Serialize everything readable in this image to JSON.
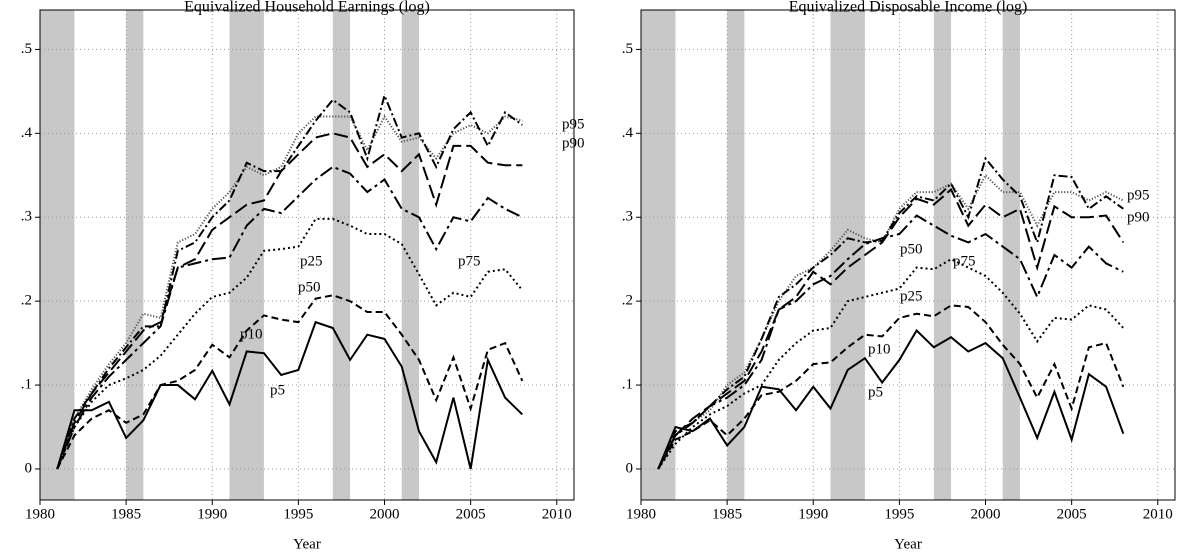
{
  "chart_data": [
    {
      "type": "line",
      "title": "Equivalized Household Earnings (log)",
      "xlabel": "Year",
      "x": [
        1981,
        1982,
        1983,
        1984,
        1985,
        1986,
        1987,
        1988,
        1989,
        1990,
        1991,
        1992,
        1993,
        1994,
        1995,
        1996,
        1997,
        1998,
        1999,
        2000,
        2001,
        2002,
        2003,
        2004,
        2005,
        2006,
        2007,
        2008
      ],
      "xlim": [
        1980,
        2011
      ],
      "ylim": [
        -0.037,
        0.547
      ],
      "xticks": [
        1980,
        1985,
        1990,
        1995,
        2000,
        2005,
        2010
      ],
      "yticks": [
        0,
        {
          "value": 0.1,
          "label": ".1"
        },
        {
          "value": 0.2,
          "label": ".2"
        },
        {
          "value": 0.3,
          "label": ".3"
        },
        {
          "value": 0.4,
          "label": ".4"
        },
        {
          "value": 0.5,
          "label": ".5"
        }
      ],
      "grid": true,
      "shaded_periods": [
        [
          1980,
          1982
        ],
        [
          1985,
          1986
        ],
        [
          1991,
          1993
        ],
        [
          1997,
          1998
        ],
        [
          2001,
          2002
        ]
      ],
      "series": [
        {
          "name": "p95",
          "color": "#555555",
          "dash": "1.2,1.8",
          "values": [
            0,
            0.06,
            0.095,
            0.125,
            0.15,
            0.185,
            0.18,
            0.27,
            0.28,
            0.31,
            0.33,
            0.36,
            0.35,
            0.36,
            0.4,
            0.42,
            0.42,
            0.42,
            0.38,
            0.42,
            0.39,
            0.395,
            0.37,
            0.4,
            0.41,
            0.4,
            0.42,
            0.415
          ]
        },
        {
          "name": "p90",
          "color": "#000000",
          "dash": "9,3,2,3",
          "values": [
            0,
            0.06,
            0.09,
            0.12,
            0.145,
            0.17,
            0.17,
            0.26,
            0.27,
            0.3,
            0.32,
            0.365,
            0.355,
            0.355,
            0.385,
            0.415,
            0.44,
            0.425,
            0.37,
            0.445,
            0.395,
            0.4,
            0.36,
            0.405,
            0.425,
            0.385,
            0.425,
            0.41
          ]
        },
        {
          "name": "p75",
          "color": "#000000",
          "dash": "14,5",
          "values": [
            0,
            0.055,
            0.09,
            0.115,
            0.14,
            0.165,
            0.175,
            0.24,
            0.25,
            0.285,
            0.3,
            0.315,
            0.32,
            0.355,
            0.375,
            0.395,
            0.4,
            0.395,
            0.36,
            0.375,
            0.355,
            0.375,
            0.315,
            0.385,
            0.385,
            0.365,
            0.362,
            0.362
          ]
        },
        {
          "name": "p50",
          "color": "#000000",
          "dash": "14,4,3,4",
          "values": [
            0,
            0.05,
            0.085,
            0.11,
            0.13,
            0.15,
            0.17,
            0.24,
            0.245,
            0.25,
            0.252,
            0.29,
            0.31,
            0.305,
            0.325,
            0.345,
            0.36,
            0.352,
            0.33,
            0.345,
            0.31,
            0.3,
            0.262,
            0.3,
            0.295,
            0.323,
            0.31,
            0.3
          ]
        },
        {
          "name": "p25",
          "color": "#000000",
          "dash": "2,3",
          "values": [
            0,
            0.05,
            0.08,
            0.1,
            0.108,
            0.118,
            0.135,
            0.16,
            0.185,
            0.205,
            0.21,
            0.228,
            0.26,
            0.262,
            0.265,
            0.298,
            0.298,
            0.29,
            0.28,
            0.28,
            0.268,
            0.232,
            0.195,
            0.21,
            0.205,
            0.235,
            0.238,
            0.213
          ]
        },
        {
          "name": "p10",
          "color": "#000000",
          "dash": "7,4",
          "values": [
            0,
            0.04,
            0.06,
            0.07,
            0.055,
            0.065,
            0.1,
            0.105,
            0.118,
            0.148,
            0.133,
            0.165,
            0.183,
            0.178,
            0.175,
            0.203,
            0.207,
            0.2,
            0.187,
            0.187,
            0.16,
            0.13,
            0.082,
            0.133,
            0.072,
            0.142,
            0.15,
            0.105
          ]
        },
        {
          "name": "p5",
          "color": "#000000",
          "dash": "none",
          "values": [
            0,
            0.07,
            0.07,
            0.08,
            0.037,
            0.058,
            0.1,
            0.1,
            0.083,
            0.117,
            0.077,
            0.14,
            0.138,
            0.112,
            0.118,
            0.175,
            0.168,
            0.13,
            0.16,
            0.155,
            0.122,
            0.045,
            0.008,
            0.085,
            0,
            0.13,
            0.085,
            0.065
          ]
        }
      ]
    },
    {
      "type": "line",
      "title": "Equivalized Disposable Income (log)",
      "xlabel": "Year",
      "x": [
        1981,
        1982,
        1983,
        1984,
        1985,
        1986,
        1987,
        1988,
        1989,
        1990,
        1991,
        1992,
        1993,
        1994,
        1995,
        1996,
        1997,
        1998,
        1999,
        2000,
        2001,
        2002,
        2003,
        2004,
        2005,
        2006,
        2007,
        2008
      ],
      "xlim": [
        1980,
        2011
      ],
      "ylim": [
        -0.037,
        0.547
      ],
      "xticks": [
        1980,
        1985,
        1990,
        1995,
        2000,
        2005,
        2010
      ],
      "yticks": [
        0,
        {
          "value": 0.1,
          "label": ".1"
        },
        {
          "value": 0.2,
          "label": ".2"
        },
        {
          "value": 0.3,
          "label": ".3"
        },
        {
          "value": 0.4,
          "label": ".4"
        },
        {
          "value": 0.5,
          "label": ".5"
        }
      ],
      "grid": true,
      "shaded_periods": [
        [
          1980,
          1982
        ],
        [
          1985,
          1986
        ],
        [
          1991,
          1993
        ],
        [
          1997,
          1998
        ],
        [
          2001,
          2002
        ]
      ],
      "series": [
        {
          "name": "p95",
          "color": "#555555",
          "dash": "1.2,1.8",
          "values": [
            0,
            0.04,
            0.055,
            0.07,
            0.1,
            0.115,
            0.155,
            0.2,
            0.23,
            0.24,
            0.26,
            0.285,
            0.275,
            0.27,
            0.31,
            0.33,
            0.33,
            0.34,
            0.31,
            0.35,
            0.33,
            0.33,
            0.29,
            0.33,
            0.33,
            0.32,
            0.33,
            0.32
          ]
        },
        {
          "name": "p90",
          "color": "#000000",
          "dash": "9,3,2,3",
          "values": [
            0,
            0.045,
            0.055,
            0.075,
            0.095,
            0.11,
            0.155,
            0.205,
            0.22,
            0.24,
            0.255,
            0.275,
            0.27,
            0.272,
            0.305,
            0.325,
            0.32,
            0.34,
            0.3,
            0.37,
            0.345,
            0.325,
            0.27,
            0.35,
            0.348,
            0.31,
            0.325,
            0.31
          ]
        },
        {
          "name": "p75",
          "color": "#000000",
          "dash": "14,5",
          "values": [
            0,
            0.04,
            0.06,
            0.075,
            0.09,
            0.105,
            0.14,
            0.19,
            0.205,
            0.235,
            0.22,
            0.24,
            0.255,
            0.27,
            0.3,
            0.322,
            0.315,
            0.333,
            0.29,
            0.315,
            0.3,
            0.31,
            0.24,
            0.313,
            0.3,
            0.3,
            0.302,
            0.27
          ]
        },
        {
          "name": "p50",
          "color": "#000000",
          "dash": "14,4,3,4",
          "values": [
            0,
            0.04,
            0.055,
            0.075,
            0.085,
            0.1,
            0.13,
            0.19,
            0.2,
            0.22,
            0.23,
            0.25,
            0.268,
            0.275,
            0.28,
            0.302,
            0.29,
            0.278,
            0.27,
            0.28,
            0.265,
            0.25,
            0.205,
            0.255,
            0.24,
            0.265,
            0.245,
            0.235
          ]
        },
        {
          "name": "p25",
          "color": "#000000",
          "dash": "2,3",
          "values": [
            0,
            0.03,
            0.05,
            0.065,
            0.075,
            0.09,
            0.1,
            0.13,
            0.15,
            0.165,
            0.168,
            0.2,
            0.205,
            0.21,
            0.215,
            0.24,
            0.238,
            0.25,
            0.24,
            0.23,
            0.21,
            0.185,
            0.152,
            0.18,
            0.178,
            0.195,
            0.19,
            0.168
          ]
        },
        {
          "name": "p10",
          "color": "#000000",
          "dash": "7,4",
          "values": [
            0,
            0.035,
            0.045,
            0.058,
            0.04,
            0.06,
            0.088,
            0.092,
            0.105,
            0.125,
            0.127,
            0.145,
            0.16,
            0.158,
            0.18,
            0.185,
            0.182,
            0.195,
            0.193,
            0.175,
            0.148,
            0.125,
            0.085,
            0.125,
            0.072,
            0.145,
            0.15,
            0.098
          ]
        },
        {
          "name": "p5",
          "color": "#000000",
          "dash": "none",
          "values": [
            0,
            0.05,
            0.045,
            0.06,
            0.028,
            0.05,
            0.098,
            0.095,
            0.07,
            0.098,
            0.072,
            0.118,
            0.132,
            0.103,
            0.13,
            0.165,
            0.145,
            0.157,
            0.14,
            0.15,
            0.132,
            0.085,
            0.037,
            0.092,
            0.035,
            0.113,
            0.098,
            0.042
          ]
        }
      ]
    }
  ]
}
